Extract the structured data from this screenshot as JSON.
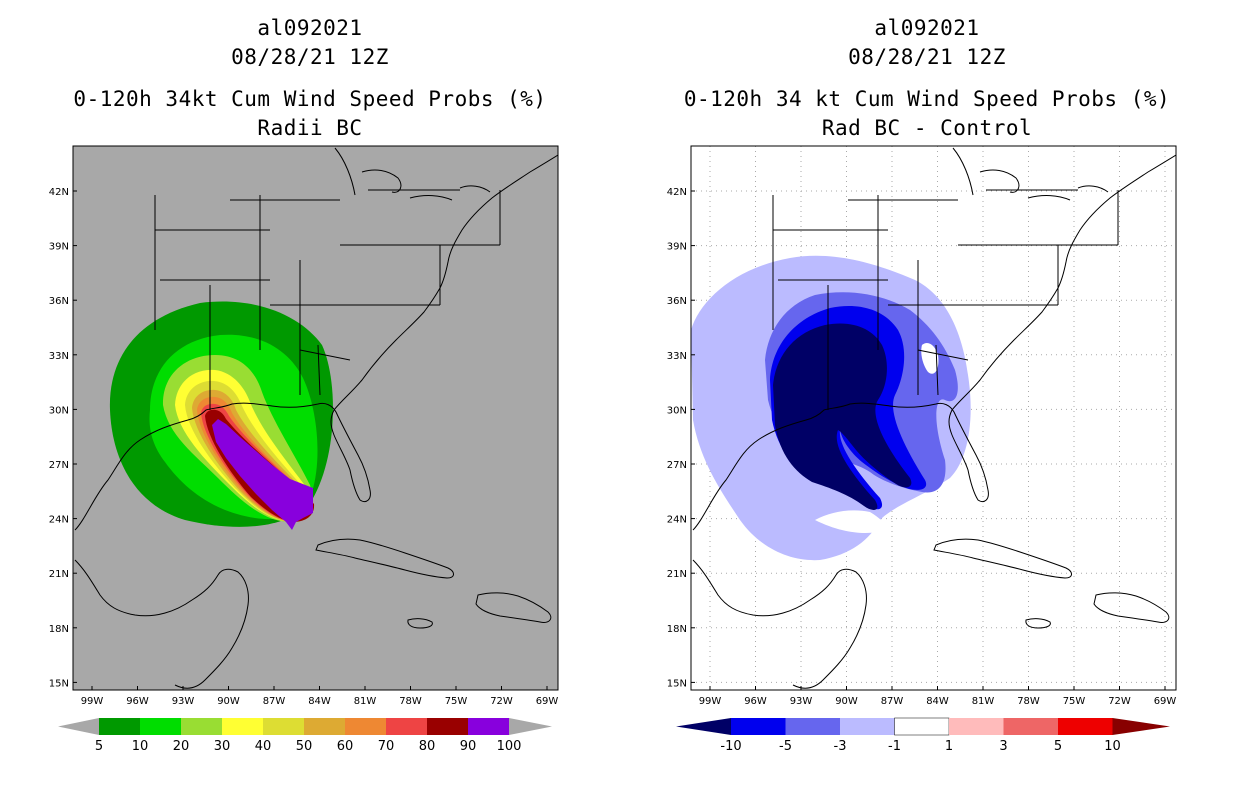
{
  "left_panel": {
    "storm_id": "al092021",
    "init_time": "08/28/21 12Z",
    "product": "0-120h 34kt Cum Wind Speed Probs (%)",
    "subtitle": "Radii BC",
    "background": "#a8a8a8",
    "colorbar": {
      "colors": [
        "#009900",
        "#00dd00",
        "#99dd33",
        "#ffff33",
        "#dddd33",
        "#ddaa33",
        "#ee8833",
        "#ee4444",
        "#990000",
        "#8800dd"
      ],
      "labels": [
        "5",
        "10",
        "20",
        "30",
        "40",
        "50",
        "60",
        "70",
        "80",
        "90",
        "100"
      ],
      "end_color": "#a8a8a8"
    }
  },
  "right_panel": {
    "storm_id": "al092021",
    "init_time": "08/28/21 12Z",
    "product": "0-120h 34 kt Cum Wind Speed Probs (%)",
    "subtitle": "Rad BC - Control",
    "background": "#ffffff",
    "colorbar": {
      "colors": [
        "#000066",
        "#0000ee",
        "#6666ee",
        "#bbbbff",
        "#ffffff",
        "#ffbbbb",
        "#ee6666",
        "#ee0000",
        "#880000"
      ],
      "labels": [
        "-10",
        "-5",
        "-3",
        "-1",
        "1",
        "3",
        "5",
        "10"
      ],
      "low_end_color": "#000066",
      "high_end_color": "#880000"
    }
  },
  "axes": {
    "lon_labels": [
      "99W",
      "96W",
      "93W",
      "90W",
      "87W",
      "84W",
      "81W",
      "78W",
      "75W",
      "72W",
      "69W"
    ],
    "lat_labels": [
      "42N",
      "39N",
      "36N",
      "33N",
      "30N",
      "27N",
      "24N",
      "21N",
      "18N",
      "15N"
    ]
  }
}
